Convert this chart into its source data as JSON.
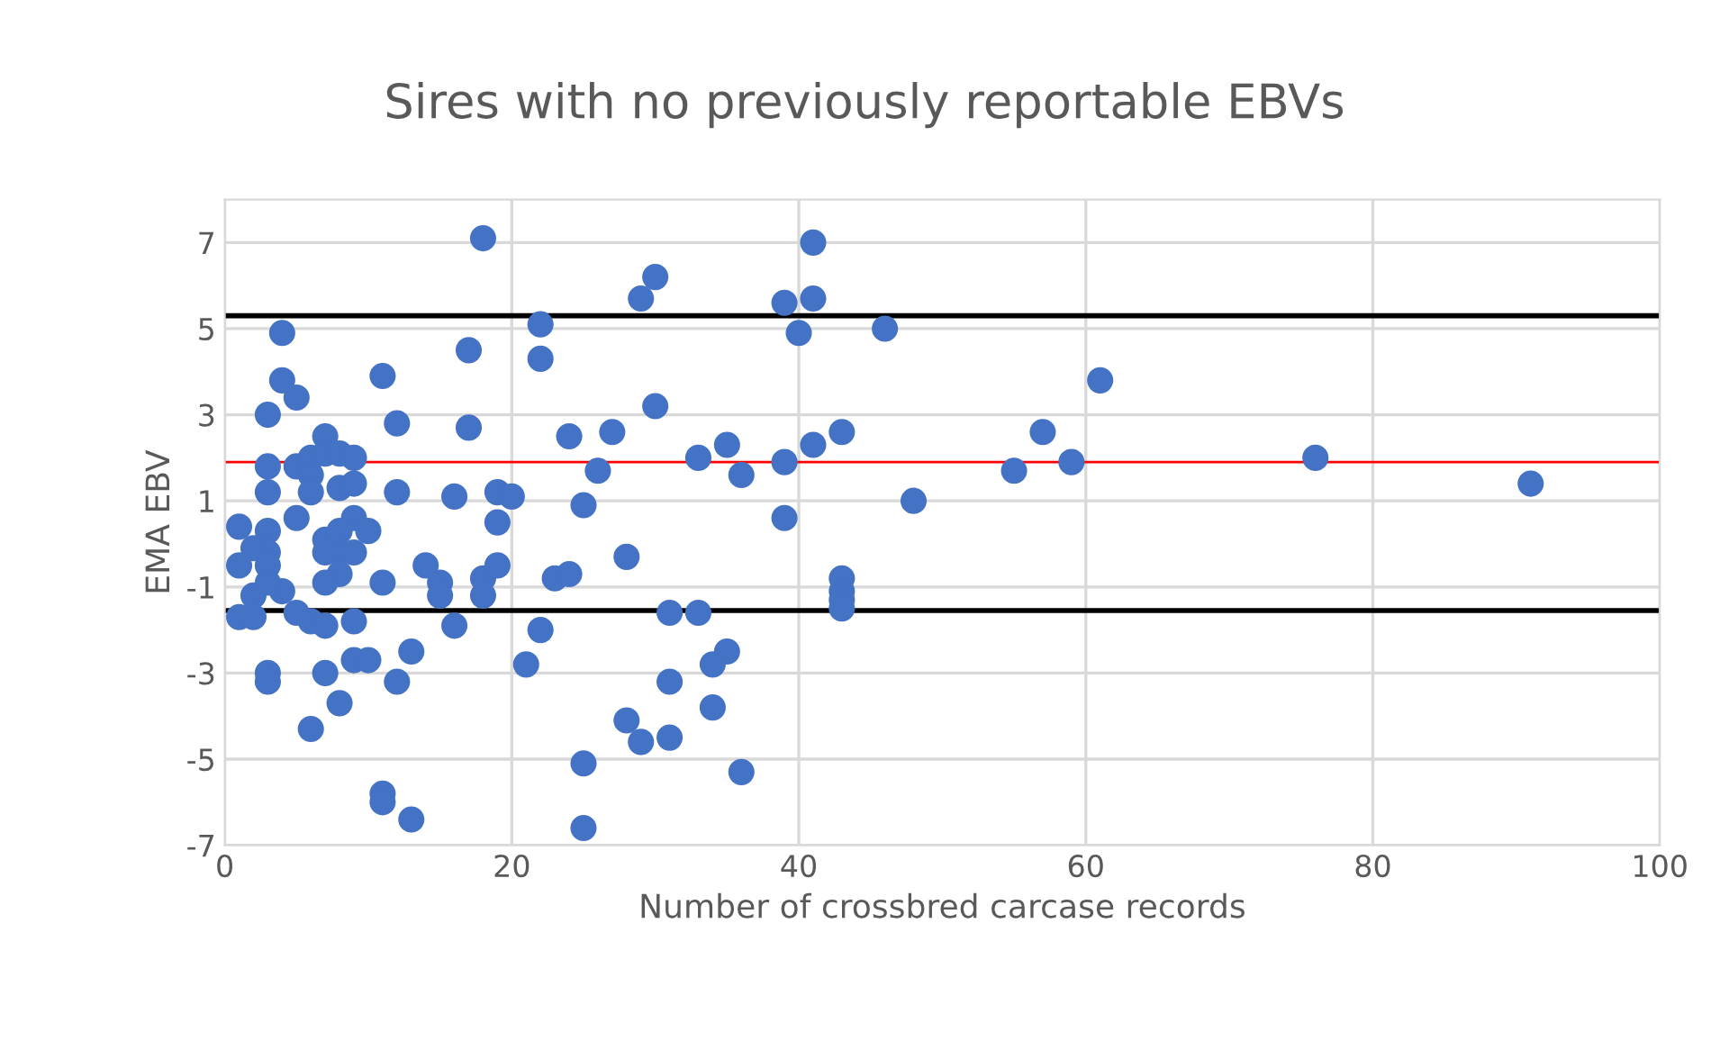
{
  "chart_data": {
    "type": "scatter",
    "title": "Sires with no previously reportable EBVs",
    "xlabel": "Number of crossbred carcase records",
    "ylabel": "EMA EBV",
    "x": [
      18,
      4,
      22,
      22,
      17,
      4,
      5,
      11,
      3,
      12,
      17,
      24,
      7,
      3,
      5,
      6,
      7,
      8,
      9,
      6,
      8,
      9,
      6,
      3,
      12,
      16,
      19,
      20,
      19,
      25,
      5,
      1,
      3,
      9,
      7,
      8,
      10,
      8,
      9,
      7,
      3,
      2,
      1,
      3,
      8,
      7,
      11,
      14,
      15,
      15,
      18,
      18,
      19,
      23,
      24,
      2,
      4,
      3,
      1,
      2,
      5,
      6,
      7,
      9,
      16,
      22,
      9,
      10,
      13,
      21,
      3,
      3,
      7,
      12,
      8,
      6,
      25,
      11,
      11,
      13,
      25,
      41,
      30,
      29,
      39,
      41,
      40,
      46,
      30,
      27,
      33,
      35,
      36,
      39,
      41,
      43,
      26,
      39,
      48,
      28,
      31,
      33,
      43,
      43,
      43,
      43,
      35,
      34,
      31,
      34,
      28,
      29,
      31,
      36,
      61,
      57,
      55,
      59,
      76,
      91
    ],
    "values": [
      7.1,
      4.9,
      5.1,
      4.3,
      4.5,
      3.8,
      3.4,
      3.9,
      3.0,
      2.8,
      2.7,
      2.5,
      2.5,
      1.8,
      1.8,
      2.0,
      2.1,
      2.1,
      2.0,
      1.6,
      1.3,
      1.4,
      1.2,
      1.2,
      1.2,
      1.1,
      1.2,
      1.1,
      0.5,
      0.9,
      0.6,
      0.4,
      0.3,
      0.6,
      0.1,
      0.3,
      0.3,
      -0.2,
      -0.2,
      -0.2,
      -0.2,
      -0.1,
      -0.5,
      -0.5,
      -0.7,
      -0.9,
      -0.9,
      -0.5,
      -0.9,
      -1.2,
      -0.8,
      -1.2,
      -0.5,
      -0.8,
      -0.7,
      -1.2,
      -1.1,
      -0.9,
      -1.7,
      -1.7,
      -1.6,
      -1.8,
      -1.9,
      -1.8,
      -1.9,
      -2.0,
      -2.7,
      -2.7,
      -2.5,
      -2.8,
      -3.0,
      -3.2,
      -3.0,
      -3.2,
      -3.7,
      -4.3,
      -5.1,
      -5.8,
      -6.0,
      -6.4,
      -6.6,
      7.0,
      6.2,
      5.7,
      5.6,
      5.7,
      4.9,
      5.0,
      3.2,
      2.6,
      2.0,
      2.3,
      1.6,
      1.9,
      2.3,
      2.6,
      1.7,
      0.6,
      1.0,
      -0.3,
      -1.6,
      -1.6,
      -0.8,
      -1.1,
      -1.3,
      -1.5,
      -2.5,
      -2.8,
      -3.2,
      -3.8,
      -4.1,
      -4.6,
      -4.5,
      -5.3,
      3.8,
      2.6,
      1.7,
      1.9,
      2.0,
      1.4
    ],
    "color": "#4472c4",
    "marker": "circle",
    "xlim": [
      0,
      100
    ],
    "xticks": [
      0,
      20,
      40,
      60,
      80,
      100
    ],
    "ylim": [
      -7,
      8
    ],
    "yticks": [
      -7,
      -5,
      -3,
      -1,
      1,
      3,
      5,
      7
    ],
    "grid": true,
    "ref_lines": [
      {
        "axis": "y",
        "value": 5.3,
        "color": "#000000"
      },
      {
        "axis": "y",
        "value": 1.9,
        "color": "#ff0000"
      },
      {
        "axis": "y",
        "value": -1.55,
        "color": "#000000"
      }
    ]
  }
}
